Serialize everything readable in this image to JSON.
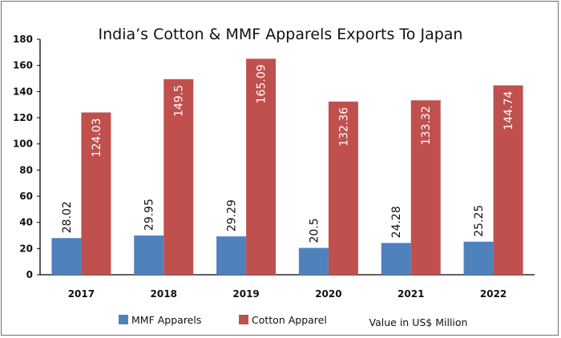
{
  "chart_data": {
    "type": "bar",
    "title": "India’s Cotton & MMF Apparels Exports To Japan",
    "categories": [
      "2017",
      "2018",
      "2019",
      "2020",
      "2021",
      "2022"
    ],
    "series": [
      {
        "name": "MMF Apparels",
        "color": "#4f81bd",
        "values": [
          28.02,
          29.95,
          29.29,
          20.5,
          24.28,
          25.25
        ]
      },
      {
        "name": "Cotton Apparel",
        "color": "#c0504d",
        "values": [
          124.03,
          149.5,
          165.09,
          132.36,
          133.32,
          144.74
        ]
      }
    ],
    "data_labels": [
      [
        "28.02",
        "29.95",
        "29.29",
        "20.5",
        "24.28",
        "25.25"
      ],
      [
        "124.03",
        "149.5",
        "165.09",
        "132.36",
        "133.32",
        "144.74"
      ]
    ],
    "yticks": [
      "0",
      "20",
      "40",
      "60",
      "80",
      "100",
      "120",
      "140",
      "160",
      "180"
    ],
    "ylim": [
      0,
      180
    ],
    "grid": false,
    "legend_position": "bottom",
    "note": "Value in US$ Million"
  }
}
